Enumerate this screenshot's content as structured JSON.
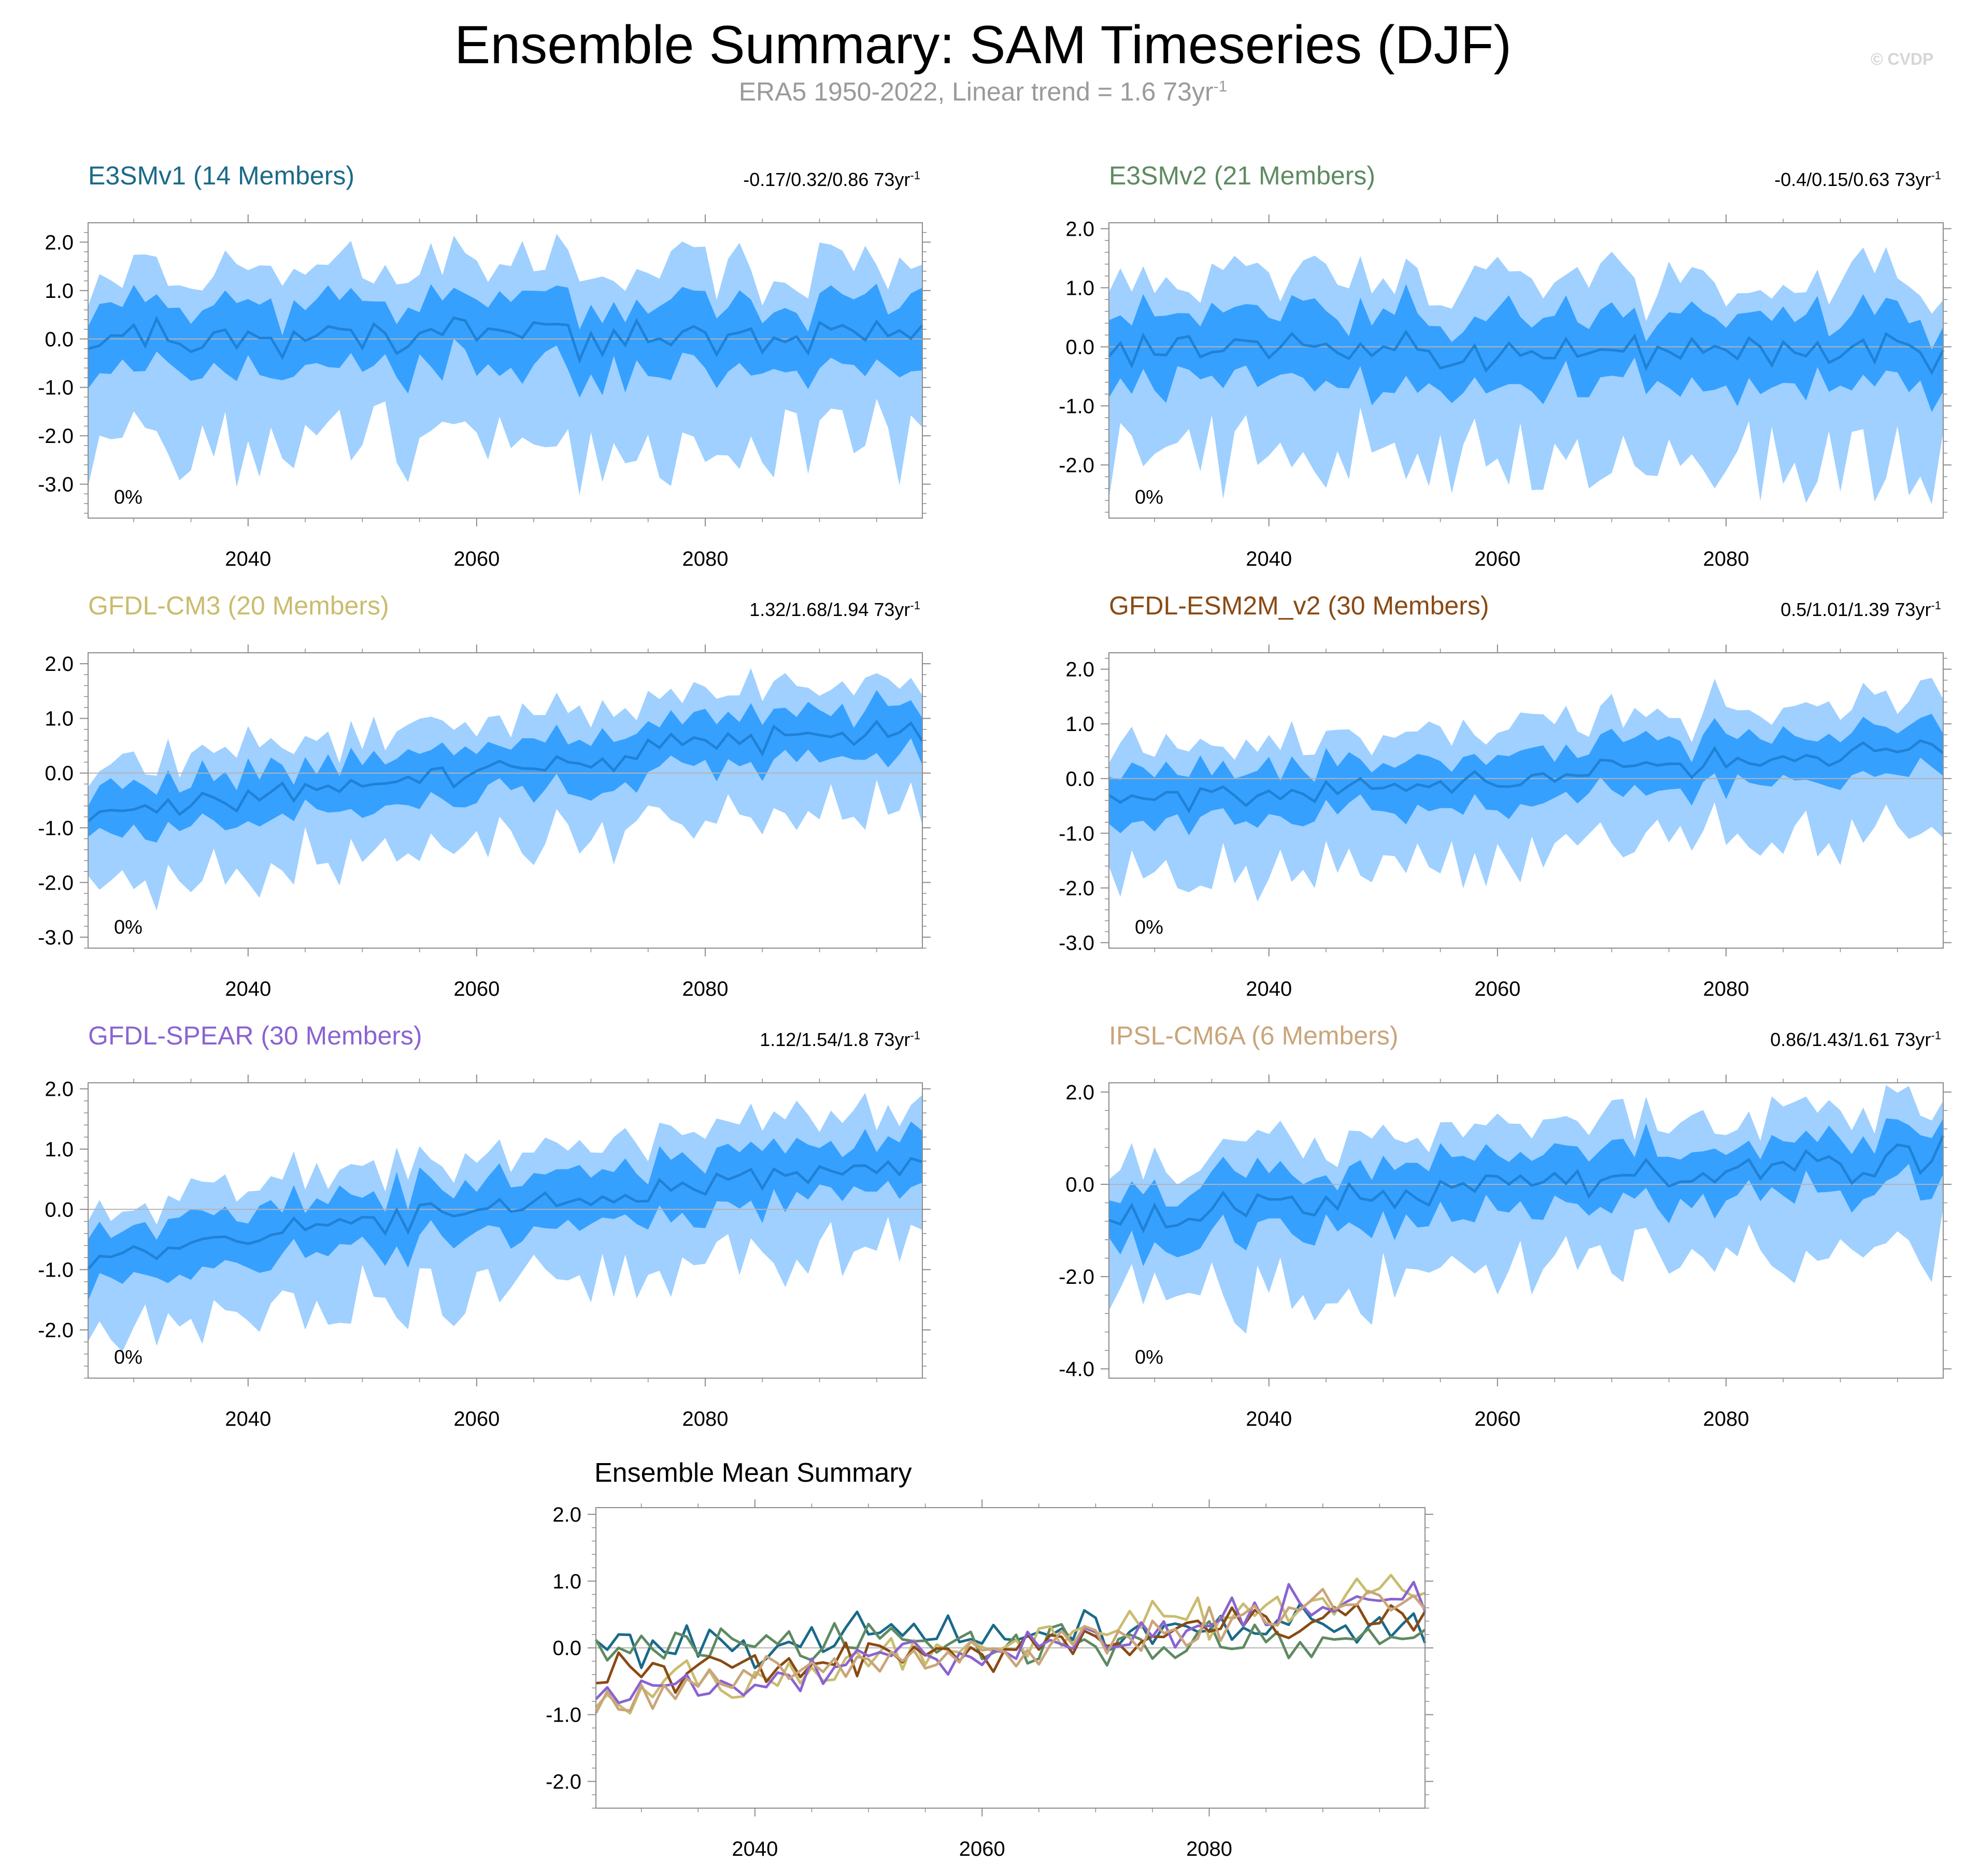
{
  "title": "Ensemble Summary: SAM Timeseries (DJF)",
  "subtitle": {
    "text": "ERA5 1950-2022, Linear trend = 1.6 73yr",
    "exp": "-1"
  },
  "watermark": "© CVDP",
  "colors": {
    "outer_band": "#9fd0ff",
    "inner_band": "#36a0ff",
    "mean_line": "#1f82d6",
    "zero_line": "#b3b3b3",
    "axis": "#8c8c8c"
  },
  "x_ticks": [
    "2040",
    "2060",
    "2080"
  ],
  "panels": [
    {
      "title": "E3SMv1 (14 Members)",
      "title_color": "#1a6a8a",
      "trend_text": "-0.17/0.32/0.86 73yr",
      "trend_exp": "-1",
      "pct": "0%",
      "ylim": [
        -3.7,
        2.4
      ],
      "yticks": [
        "2.0",
        "1.0",
        "0.0",
        "-1.0",
        "-2.0",
        "-3.0"
      ],
      "ytick_values": [
        2,
        1,
        0,
        -1,
        -2,
        -3
      ],
      "trend_slope": 0.0,
      "noise": [
        0.35,
        0.7,
        1.5
      ],
      "mean_offset": 0.05,
      "seed": 11
    },
    {
      "title": "E3SMv2 (21 Members)",
      "title_color": "#5e8a62",
      "trend_text": "-0.4/0.15/0.63 73yr",
      "trend_exp": "-1",
      "pct": "0%",
      "ylim": [
        -2.9,
        2.1
      ],
      "yticks": [
        "2.0",
        "1.0",
        "0.0",
        "-1.0",
        "-2.0"
      ],
      "ytick_values": [
        2,
        1,
        0,
        -1,
        -2
      ],
      "trend_slope": 0.0,
      "noise": [
        0.3,
        0.6,
        1.3
      ],
      "mean_offset": -0.05,
      "seed": 23
    },
    {
      "title": "GFDL-CM3 (20 Members)",
      "title_color": "#c9bc6e",
      "trend_text": "1.32/1.68/1.94 73yr",
      "trend_exp": "-1",
      "pct": "0%",
      "ylim": [
        -3.2,
        2.2
      ],
      "yticks": [
        "2.0",
        "1.0",
        "0.0",
        "-1.0",
        "-2.0",
        "-3.0"
      ],
      "ytick_values": [
        2,
        1,
        0,
        -1,
        -2,
        -3
      ],
      "trend_slope": 1.68,
      "noise": [
        0.25,
        0.45,
        0.9
      ],
      "mean_offset": -0.75,
      "seed": 37
    },
    {
      "title": "GFDL-ESM2M_v2 (30 Members)",
      "title_color": "#8a4a14",
      "trend_text": "0.5/1.01/1.39 73yr",
      "trend_exp": "-1",
      "pct": "0%",
      "ylim": [
        -3.1,
        2.3
      ],
      "yticks": [
        "2.0",
        "1.0",
        "0.0",
        "-1.0",
        "-2.0",
        "-3.0"
      ],
      "ytick_values": [
        2,
        1,
        0,
        -1,
        -2,
        -3
      ],
      "trend_slope": 1.01,
      "noise": [
        0.2,
        0.45,
        1.0
      ],
      "mean_offset": -0.45,
      "seed": 41
    },
    {
      "title": "GFDL-SPEAR (30 Members)",
      "title_color": "#8a63d2",
      "trend_text": "1.12/1.54/1.8 73yr",
      "trend_exp": "-1",
      "pct": "0%",
      "ylim": [
        -2.8,
        2.1
      ],
      "yticks": [
        "2.0",
        "1.0",
        "0.0",
        "-1.0",
        "-2.0"
      ],
      "ytick_values": [
        2,
        1,
        0,
        -1,
        -2
      ],
      "trend_slope": 1.54,
      "noise": [
        0.2,
        0.45,
        0.9
      ],
      "mean_offset": -0.75,
      "seed": 53
    },
    {
      "title": "IPSL-CM6A (6 Members)",
      "title_color": "#c9a57a",
      "trend_text": "0.86/1.43/1.61 73yr",
      "trend_exp": "-1",
      "pct": "0%",
      "ylim": [
        -4.2,
        2.2
      ],
      "yticks": [
        "2.0",
        "0.0",
        "-2.0",
        "-4.0"
      ],
      "ytick_values": [
        2,
        0,
        -2,
        -4
      ],
      "trend_slope": 1.43,
      "noise": [
        0.35,
        0.6,
        1.3
      ],
      "mean_offset": -0.7,
      "seed": 67
    }
  ],
  "chart_data": {
    "type": "line",
    "title": "Ensemble Mean Summary",
    "x_range": [
      2026,
      2099
    ],
    "x_ticks": [
      2040,
      2060,
      2080
    ],
    "ylim": [
      -2.4,
      2.1
    ],
    "yticks": [
      "2.0",
      "1.0",
      "0.0",
      "-1.0",
      "-2.0"
    ],
    "ytick_values": [
      2,
      1,
      0,
      -1,
      -2
    ],
    "series": [
      {
        "name": "E3SMv1",
        "color": "#1a6a8a",
        "trend_per_73yr": 0.32,
        "start": 0.05
      },
      {
        "name": "E3SMv2",
        "color": "#5e8a62",
        "trend_per_73yr": 0.15,
        "start": 0.0
      },
      {
        "name": "GFDL-CM3",
        "color": "#c9bc6e",
        "trend_per_73yr": 1.68,
        "start": -0.75
      },
      {
        "name": "GFDL-ESM2M_v2",
        "color": "#8a4a14",
        "trend_per_73yr": 1.01,
        "start": -0.45
      },
      {
        "name": "GFDL-SPEAR",
        "color": "#8a63d2",
        "trend_per_73yr": 1.54,
        "start": -0.75
      },
      {
        "name": "IPSL-CM6A",
        "color": "#c9a57a",
        "trend_per_73yr": 1.43,
        "start": -0.7
      }
    ]
  }
}
